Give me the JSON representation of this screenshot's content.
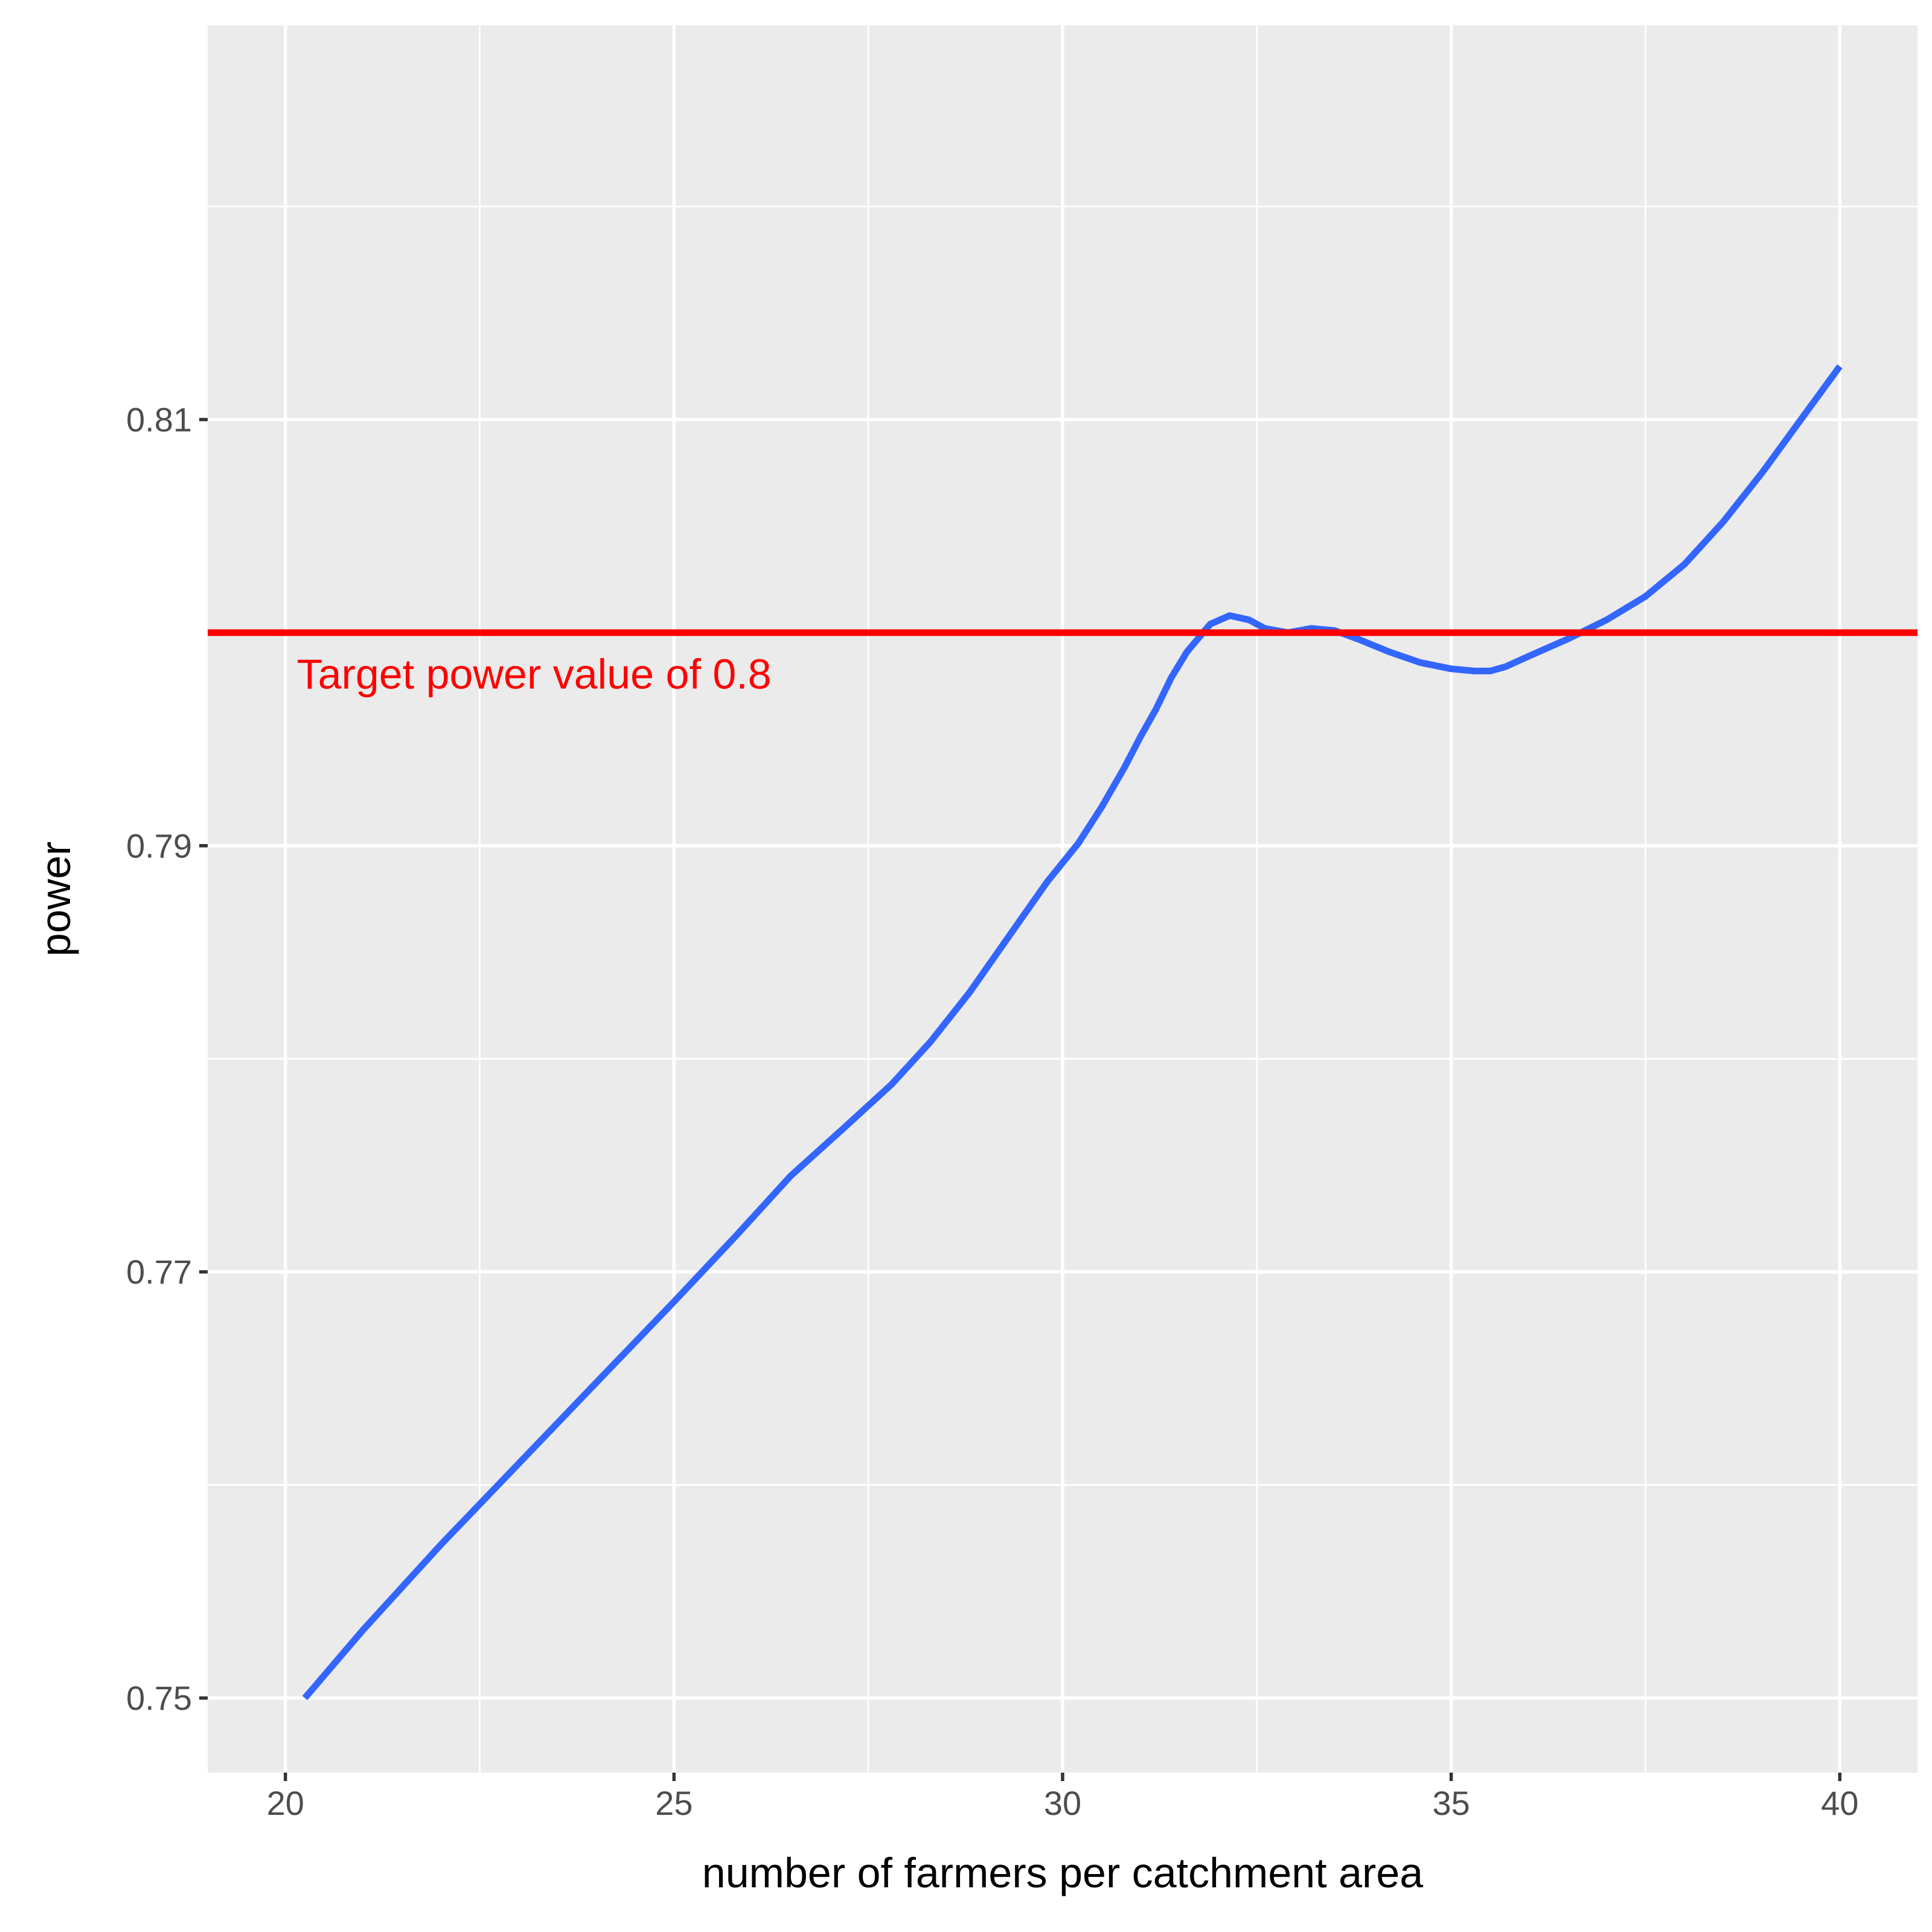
{
  "chart_data": {
    "type": "line",
    "title": "",
    "xlabel": "number of farmers per catchment area",
    "ylabel": "power",
    "xlim": [
      19,
      41
    ],
    "ylim": [
      0.7465,
      0.8285
    ],
    "x_ticks": [
      20,
      25,
      30,
      35,
      40
    ],
    "x_tick_labels": [
      "20",
      "25",
      "30",
      "35",
      "40"
    ],
    "x_minor_ticks": [
      22.5,
      27.5,
      32.5,
      37.5
    ],
    "y_ticks": [
      0.75,
      0.77,
      0.79,
      0.81
    ],
    "y_tick_labels": [
      "0.75",
      "0.77",
      "0.79",
      "0.81"
    ],
    "y_minor_ticks": [
      0.76,
      0.78,
      0.8,
      0.82
    ],
    "grid": true,
    "series": [
      {
        "color": "#3366ff",
        "x": [
          20.25,
          21.0,
          22.0,
          23.0,
          24.0,
          25.0,
          25.8,
          26.5,
          27.2,
          27.8,
          28.3,
          28.8,
          29.3,
          29.8,
          30.2,
          30.5,
          30.8,
          31.0,
          31.2,
          31.4,
          31.6,
          31.9,
          32.15,
          32.4,
          32.6,
          32.9,
          33.2,
          33.5,
          33.8,
          34.2,
          34.6,
          35.0,
          35.3,
          35.5,
          35.7,
          36.0,
          36.5,
          37.0,
          37.5,
          38.0,
          38.5,
          39.0,
          39.5,
          40.0
        ],
        "y": [
          0.75,
          0.7532,
          0.7572,
          0.761,
          0.7648,
          0.7686,
          0.7717,
          0.7745,
          0.7768,
          0.7788,
          0.7808,
          0.7831,
          0.7857,
          0.7883,
          0.7901,
          0.7918,
          0.7937,
          0.7951,
          0.7964,
          0.7979,
          0.7991,
          0.8004,
          0.8008,
          0.8006,
          0.8002,
          0.8,
          0.8002,
          0.8001,
          0.7997,
          0.7991,
          0.7986,
          0.7983,
          0.7982,
          0.7982,
          0.7984,
          0.7989,
          0.7997,
          0.8006,
          0.8017,
          0.8032,
          0.8052,
          0.8075,
          0.81,
          0.8125
        ]
      }
    ],
    "reference_lines": [
      {
        "orientation": "horizontal",
        "y": 0.8,
        "color": "#ff0000",
        "label": "Target power value of 0.8",
        "label_x": 23.2,
        "label_y": 0.7979
      }
    ],
    "panel_color": "#ebebeb"
  }
}
